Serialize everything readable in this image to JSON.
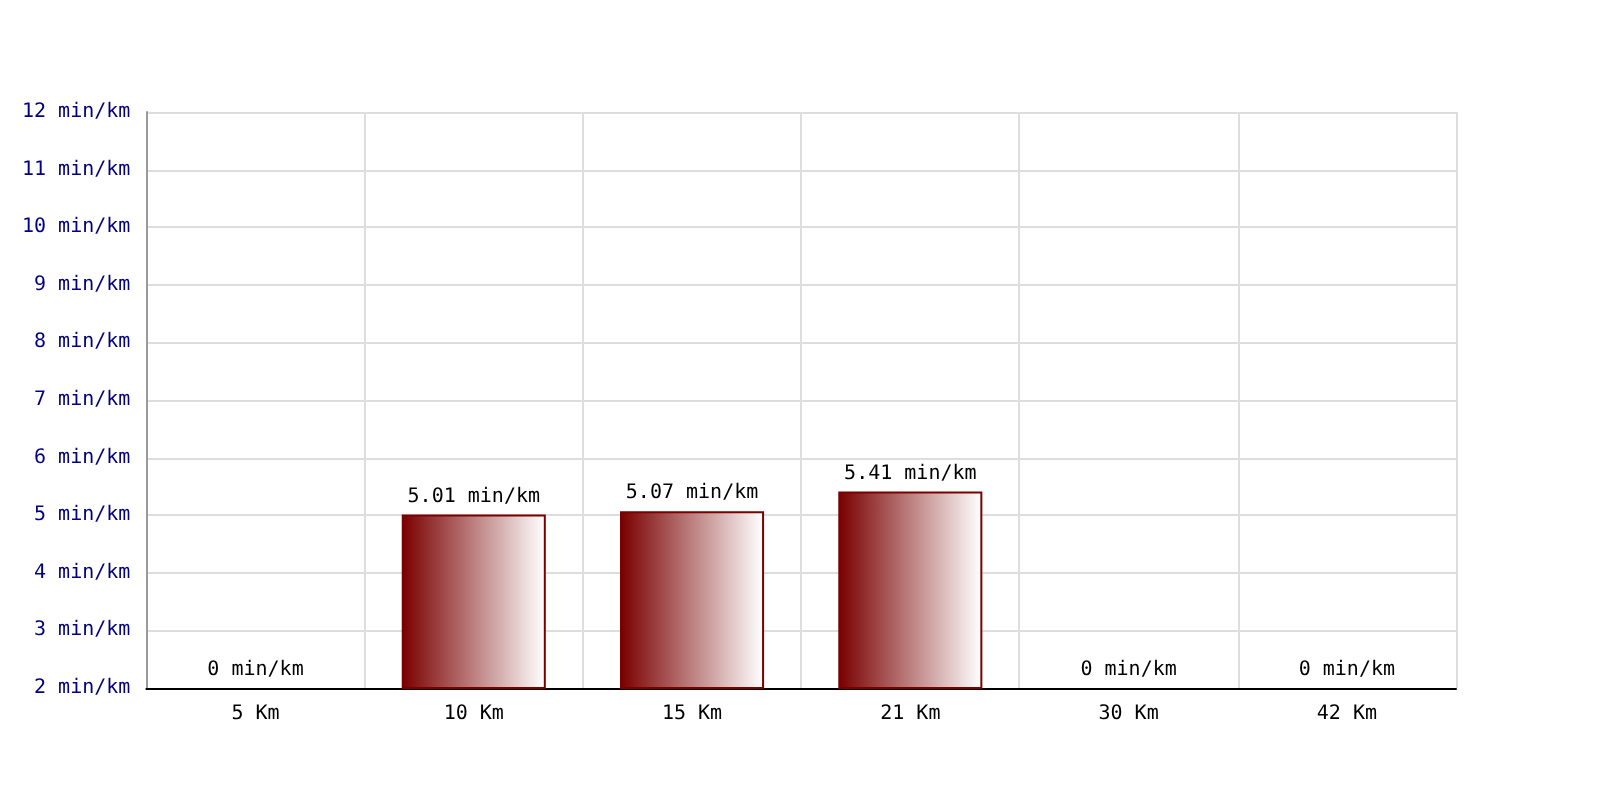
{
  "chart_data": {
    "type": "bar",
    "categories": [
      "5 Km",
      "10 Km",
      "15 Km",
      "21 Km",
      "30 Km",
      "42 Km"
    ],
    "values": [
      null,
      5.01,
      5.07,
      5.41,
      null,
      null
    ],
    "value_labels": [
      "0 min/km",
      "5.01 min/km",
      "5.07 min/km",
      "5.41 min/km",
      "0 min/km",
      "0 min/km"
    ],
    "color": "#7a0000",
    "ylim": [
      2,
      12
    ],
    "yticks": [
      {
        "value": 2,
        "label": "2 min/km"
      },
      {
        "value": 3,
        "label": "3 min/km"
      },
      {
        "value": 4,
        "label": "4 min/km"
      },
      {
        "value": 5,
        "label": "5 min/km"
      },
      {
        "value": 6,
        "label": "6 min/km"
      },
      {
        "value": 7,
        "label": "7 min/km"
      },
      {
        "value": 8,
        "label": "8 min/km"
      },
      {
        "value": 9,
        "label": "9 min/km"
      },
      {
        "value": 10,
        "label": "10 min/km"
      },
      {
        "value": 11,
        "label": "11 min/km"
      },
      {
        "value": 12,
        "label": "12 min/km"
      }
    ],
    "grid": true
  }
}
